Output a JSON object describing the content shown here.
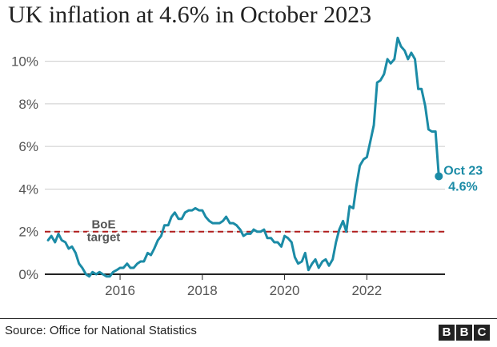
{
  "title": "UK inflation at 4.6% in October 2023",
  "source": "Source: Office for National Statistics",
  "logo_letters": [
    "B",
    "B",
    "C"
  ],
  "colors": {
    "line": "#1b8ba6",
    "target": "#b01c1c",
    "axis": "#222222",
    "grid": "#cccccc",
    "text": "#222222"
  },
  "chart_data": {
    "type": "line",
    "title": "UK inflation at 4.6% in October 2023",
    "xlabel": "",
    "ylabel": "",
    "xlim": [
      2014.17,
      2023.9
    ],
    "ylim": [
      0,
      11
    ],
    "yticks": [
      0,
      2,
      4,
      6,
      8,
      10
    ],
    "ytick_labels": [
      "0%",
      "2%",
      "4%",
      "6%",
      "8%",
      "10%"
    ],
    "xticks": [
      2016,
      2018,
      2020,
      2022
    ],
    "xtick_labels": [
      "2016",
      "2018",
      "2020",
      "2022"
    ],
    "grid": true,
    "series": [
      {
        "x": [
          2014.25,
          2014.33,
          2014.42,
          2014.5,
          2014.58,
          2014.67,
          2014.75,
          2014.83,
          2014.92,
          2015.0,
          2015.08,
          2015.17,
          2015.25,
          2015.33,
          2015.42,
          2015.5,
          2015.58,
          2015.67,
          2015.75,
          2015.83,
          2015.92,
          2016.0,
          2016.08,
          2016.17,
          2016.25,
          2016.33,
          2016.42,
          2016.5,
          2016.58,
          2016.67,
          2016.75,
          2016.83,
          2016.92,
          2017.0,
          2017.08,
          2017.17,
          2017.25,
          2017.33,
          2017.42,
          2017.5,
          2017.58,
          2017.67,
          2017.75,
          2017.83,
          2017.92,
          2018.0,
          2018.08,
          2018.17,
          2018.25,
          2018.33,
          2018.42,
          2018.5,
          2018.58,
          2018.67,
          2018.75,
          2018.83,
          2018.92,
          2019.0,
          2019.08,
          2019.17,
          2019.25,
          2019.33,
          2019.42,
          2019.5,
          2019.58,
          2019.67,
          2019.75,
          2019.83,
          2019.92,
          2020.0,
          2020.08,
          2020.17,
          2020.25,
          2020.33,
          2020.42,
          2020.5,
          2020.58,
          2020.67,
          2020.75,
          2020.83,
          2020.92,
          2021.0,
          2021.08,
          2021.17,
          2021.25,
          2021.33,
          2021.42,
          2021.5,
          2021.58,
          2021.67,
          2021.75,
          2021.83,
          2021.92,
          2022.0,
          2022.08,
          2022.17,
          2022.25,
          2022.33,
          2022.42,
          2022.5,
          2022.58,
          2022.67,
          2022.75,
          2022.83,
          2022.92,
          2023.0,
          2023.08,
          2023.17,
          2023.25,
          2023.33,
          2023.42,
          2023.5,
          2023.58,
          2023.67,
          2023.75
        ],
        "y": [
          1.6,
          1.8,
          1.5,
          1.9,
          1.6,
          1.5,
          1.2,
          1.3,
          1.0,
          0.5,
          0.3,
          0.0,
          -0.1,
          0.1,
          0.0,
          0.1,
          0.0,
          -0.1,
          -0.1,
          0.1,
          0.2,
          0.3,
          0.3,
          0.5,
          0.3,
          0.3,
          0.5,
          0.6,
          0.6,
          1.0,
          0.9,
          1.2,
          1.6,
          1.8,
          2.3,
          2.3,
          2.7,
          2.9,
          2.6,
          2.6,
          2.9,
          3.0,
          3.0,
          3.1,
          3.0,
          3.0,
          2.7,
          2.5,
          2.4,
          2.4,
          2.4,
          2.5,
          2.7,
          2.4,
          2.4,
          2.3,
          2.1,
          1.8,
          1.9,
          1.9,
          2.1,
          2.0,
          2.0,
          2.1,
          1.7,
          1.7,
          1.5,
          1.5,
          1.3,
          1.8,
          1.7,
          1.5,
          0.8,
          0.5,
          0.6,
          1.0,
          0.2,
          0.5,
          0.7,
          0.3,
          0.6,
          0.7,
          0.4,
          0.7,
          1.5,
          2.1,
          2.5,
          2.0,
          3.2,
          3.1,
          4.2,
          5.1,
          5.4,
          5.5,
          6.2,
          7.0,
          9.0,
          9.1,
          9.4,
          10.1,
          9.9,
          10.1,
          11.1,
          10.7,
          10.5,
          10.1,
          10.4,
          10.1,
          8.7,
          8.7,
          7.9,
          6.8,
          6.7,
          6.7,
          4.6
        ]
      }
    ],
    "reference_line": {
      "y": 2,
      "label_lines": [
        "BoE",
        "target"
      ]
    },
    "annotation": {
      "label_lines": [
        "Oct 23",
        "4.6%"
      ],
      "x": 2023.75,
      "y": 4.6
    }
  }
}
